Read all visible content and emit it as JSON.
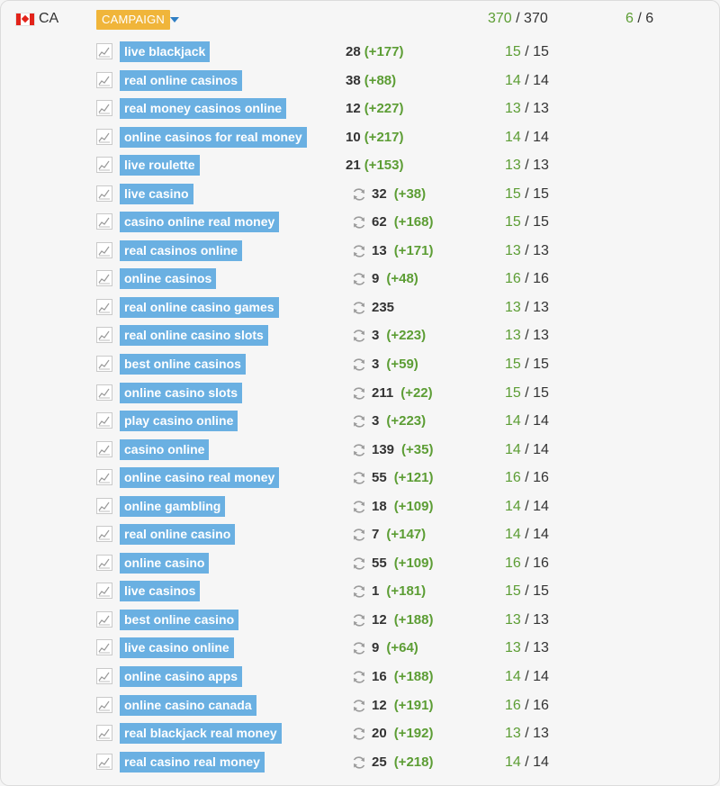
{
  "header": {
    "country_code": "CA",
    "campaign_label": "CAMPAIGN",
    "total_fraction": {
      "value": "370",
      "max": "370"
    },
    "count_fraction": {
      "value": "6",
      "max": "6"
    }
  },
  "rows": [
    {
      "keyword": "live blackjack",
      "rank": "28",
      "delta": "(+177)",
      "sync": false,
      "score": "15",
      "max": "15"
    },
    {
      "keyword": "real online casinos",
      "rank": "38",
      "delta": "(+88)",
      "sync": false,
      "score": "14",
      "max": "14"
    },
    {
      "keyword": "real money casinos online",
      "rank": "12",
      "delta": "(+227)",
      "sync": false,
      "score": "13",
      "max": "13"
    },
    {
      "keyword": "online casinos for real money",
      "rank": "10",
      "delta": "(+217)",
      "sync": false,
      "score": "14",
      "max": "14"
    },
    {
      "keyword": "live roulette",
      "rank": "21",
      "delta": "(+153)",
      "sync": false,
      "score": "13",
      "max": "13"
    },
    {
      "keyword": "live casino",
      "rank": "32",
      "delta": "(+38)",
      "sync": true,
      "score": "15",
      "max": "15"
    },
    {
      "keyword": "casino online real money",
      "rank": "62",
      "delta": "(+168)",
      "sync": true,
      "score": "15",
      "max": "15"
    },
    {
      "keyword": "real casinos online",
      "rank": "13",
      "delta": "(+171)",
      "sync": true,
      "score": "13",
      "max": "13"
    },
    {
      "keyword": "online casinos",
      "rank": "9",
      "delta": "(+48)",
      "sync": true,
      "score": "16",
      "max": "16"
    },
    {
      "keyword": "real online casino games",
      "rank": "235",
      "delta": "",
      "sync": true,
      "score": "13",
      "max": "13"
    },
    {
      "keyword": "real online casino slots",
      "rank": "3",
      "delta": "(+223)",
      "sync": true,
      "score": "13",
      "max": "13"
    },
    {
      "keyword": "best online casinos",
      "rank": "3",
      "delta": "(+59)",
      "sync": true,
      "score": "15",
      "max": "15"
    },
    {
      "keyword": "online casino slots",
      "rank": "211",
      "delta": "(+22)",
      "sync": true,
      "score": "15",
      "max": "15"
    },
    {
      "keyword": "play casino online",
      "rank": "3",
      "delta": "(+223)",
      "sync": true,
      "score": "14",
      "max": "14"
    },
    {
      "keyword": "casino online",
      "rank": "139",
      "delta": "(+35)",
      "sync": true,
      "score": "14",
      "max": "14"
    },
    {
      "keyword": "online casino real money",
      "rank": "55",
      "delta": "(+121)",
      "sync": true,
      "score": "16",
      "max": "16"
    },
    {
      "keyword": "online gambling",
      "rank": "18",
      "delta": "(+109)",
      "sync": true,
      "score": "14",
      "max": "14"
    },
    {
      "keyword": "real online casino",
      "rank": "7",
      "delta": "(+147)",
      "sync": true,
      "score": "14",
      "max": "14"
    },
    {
      "keyword": "online casino",
      "rank": "55",
      "delta": "(+109)",
      "sync": true,
      "score": "16",
      "max": "16"
    },
    {
      "keyword": "live casinos",
      "rank": "1",
      "delta": "(+181)",
      "sync": true,
      "score": "15",
      "max": "15"
    },
    {
      "keyword": "best online casino",
      "rank": "12",
      "delta": "(+188)",
      "sync": true,
      "score": "13",
      "max": "13"
    },
    {
      "keyword": "live casino online",
      "rank": "9",
      "delta": "(+64)",
      "sync": true,
      "score": "13",
      "max": "13"
    },
    {
      "keyword": "online casino apps",
      "rank": "16",
      "delta": "(+188)",
      "sync": true,
      "score": "14",
      "max": "14"
    },
    {
      "keyword": "online casino canada",
      "rank": "12",
      "delta": "(+191)",
      "sync": true,
      "score": "16",
      "max": "16"
    },
    {
      "keyword": "real blackjack real money",
      "rank": "20",
      "delta": "(+192)",
      "sync": true,
      "score": "13",
      "max": "13"
    },
    {
      "keyword": "real casino real money",
      "rank": "25",
      "delta": "(+218)",
      "sync": true,
      "score": "14",
      "max": "14"
    }
  ],
  "icons": {
    "flag": "canada-flag-icon",
    "chart": "line-chart-icon",
    "refresh": "refresh-icon",
    "dropdown": "chevron-down-icon"
  },
  "colors": {
    "keyword_bg": "#6ab0e2",
    "campaign_bg": "#f0b53a",
    "positive": "#5c9d34",
    "caret": "#2f7fc4"
  }
}
